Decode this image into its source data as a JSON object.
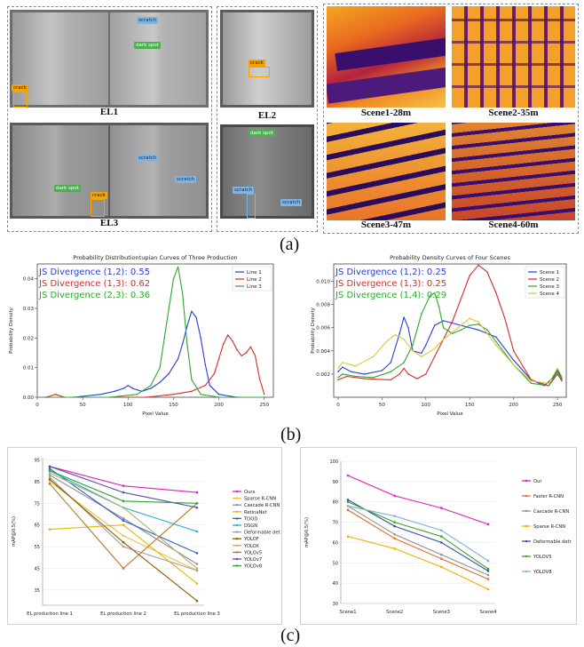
{
  "panel_a": {
    "letter": "(a)",
    "el": [
      {
        "caption": "EL1",
        "tags": [
          "scratch",
          "dark spot",
          "crack"
        ]
      },
      {
        "caption": "EL2",
        "tags": [
          "crack"
        ]
      },
      {
        "caption": "EL3",
        "tags": [
          "scratch",
          "scratch",
          "dark spot",
          "crack"
        ]
      },
      {
        "caption": "",
        "tags": [
          "dark spot",
          "scratch",
          "scratch"
        ]
      }
    ],
    "scenes": [
      "Scene1-28m",
      "Scene2-35m",
      "Scene3-47m",
      "Scene4-60m"
    ]
  },
  "panel_b": {
    "letter": "(b)"
  },
  "panel_c": {
    "letter": "(c)"
  },
  "colors": {
    "blue": "#2b3bd6",
    "red": "#d62b2b",
    "green": "#2ba82b",
    "gray": "#9a9a9a",
    "pink": "#e01fbf"
  },
  "chart_data": [
    {
      "type": "line",
      "title": "Probability Distributiontupian Curves of Three Production",
      "xlabel": "Pixel Value",
      "ylabel": "Probability Density",
      "xlim": [
        0,
        260
      ],
      "ylim": [
        0,
        0.045
      ],
      "xticks": [
        0,
        50,
        100,
        150,
        200,
        250
      ],
      "yticks": [
        0.0,
        0.01,
        0.02,
        0.03,
        0.04
      ],
      "ytick_labels": [
        "0.00",
        "0.01",
        "0.02",
        "0.03",
        "0.04"
      ],
      "legend": "top-right",
      "annotations": [
        {
          "text": "JS Divergence (1,2): 0.55",
          "color": "blue"
        },
        {
          "text": "JS Divergence (1,3): 0.62",
          "color": "red"
        },
        {
          "text": "JS Divergence (2,3): 0.36",
          "color": "green"
        }
      ],
      "series": [
        {
          "name": "Line 1",
          "color": "blue",
          "x": [
            10,
            40,
            70,
            85,
            95,
            100,
            105,
            115,
            125,
            135,
            145,
            155,
            160,
            165,
            170,
            175,
            180,
            185,
            190,
            200,
            220,
            250
          ],
          "y": [
            0,
            0,
            0.001,
            0.002,
            0.003,
            0.004,
            0.003,
            0.002,
            0.003,
            0.005,
            0.008,
            0.013,
            0.018,
            0.024,
            0.029,
            0.027,
            0.02,
            0.011,
            0.004,
            0.001,
            0,
            0
          ]
        },
        {
          "name": "Line 2",
          "color": "red",
          "x": [
            10,
            20,
            30,
            50,
            80,
            120,
            150,
            170,
            185,
            195,
            200,
            205,
            210,
            215,
            220,
            225,
            230,
            235,
            240,
            245,
            250
          ],
          "y": [
            0,
            0.001,
            0,
            0,
            0,
            0,
            0.001,
            0.002,
            0.004,
            0.008,
            0.013,
            0.018,
            0.021,
            0.019,
            0.016,
            0.014,
            0.015,
            0.017,
            0.014,
            0.006,
            0.001
          ]
        },
        {
          "name": "Line 3",
          "color": "green",
          "x": [
            10,
            80,
            110,
            125,
            135,
            140,
            145,
            150,
            155,
            160,
            165,
            170,
            180,
            200,
            250
          ],
          "y": [
            0,
            0,
            0.001,
            0.004,
            0.01,
            0.02,
            0.03,
            0.04,
            0.044,
            0.035,
            0.018,
            0.006,
            0.001,
            0,
            0
          ]
        }
      ]
    },
    {
      "type": "line",
      "title": "Probability Density Curves of Four Scenes",
      "xlabel": "Pixel Value",
      "ylabel": "Probability Density",
      "xlim": [
        -5,
        260
      ],
      "ylim": [
        0,
        0.0115
      ],
      "xticks": [
        0,
        50,
        100,
        150,
        200,
        250
      ],
      "yticks": [
        0.002,
        0.004,
        0.006,
        0.008,
        0.01
      ],
      "ytick_labels": [
        "0.002",
        "0.004",
        "0.006",
        "0.008",
        "0.010"
      ],
      "legend": "top-right",
      "annotations": [
        {
          "text": "JS Divergence (1,2): 0.25",
          "color": "blue"
        },
        {
          "text": "JS Divergence (1,3): 0.25",
          "color": "red"
        },
        {
          "text": "JS Divergence (1,4): 0.29",
          "color": "green"
        }
      ],
      "series": [
        {
          "name": "Scene 1",
          "color": "#2b3bd6",
          "x": [
            0,
            5,
            15,
            30,
            50,
            60,
            70,
            75,
            80,
            85,
            95,
            100,
            110,
            120,
            140,
            160,
            180,
            200,
            220,
            235,
            245,
            250,
            255
          ],
          "y": [
            0.0022,
            0.0026,
            0.0022,
            0.002,
            0.0023,
            0.003,
            0.0055,
            0.0069,
            0.006,
            0.004,
            0.0038,
            0.0045,
            0.0062,
            0.0066,
            0.0062,
            0.0058,
            0.0052,
            0.0032,
            0.0015,
            0.001,
            0.0017,
            0.0024,
            0.0016
          ]
        },
        {
          "name": "Scene 2",
          "color": "#d62b2b",
          "x": [
            0,
            10,
            30,
            60,
            70,
            75,
            80,
            90,
            100,
            110,
            120,
            130,
            140,
            150,
            160,
            170,
            180,
            190,
            200,
            220,
            240,
            250,
            255
          ],
          "y": [
            0.0015,
            0.0018,
            0.0016,
            0.0015,
            0.002,
            0.0025,
            0.002,
            0.0016,
            0.002,
            0.0035,
            0.005,
            0.0065,
            0.0085,
            0.0105,
            0.0114,
            0.0108,
            0.009,
            0.0068,
            0.004,
            0.0015,
            0.001,
            0.002,
            0.0014
          ]
        },
        {
          "name": "Scene 3",
          "color": "#2ba82b",
          "x": [
            0,
            5,
            20,
            40,
            60,
            75,
            85,
            95,
            105,
            110,
            115,
            120,
            130,
            140,
            150,
            160,
            170,
            180,
            200,
            220,
            240,
            250,
            255
          ],
          "y": [
            0.0017,
            0.002,
            0.0018,
            0.0017,
            0.0022,
            0.003,
            0.0045,
            0.0072,
            0.0088,
            0.009,
            0.0078,
            0.006,
            0.0055,
            0.0058,
            0.0062,
            0.0063,
            0.0058,
            0.0048,
            0.0028,
            0.0012,
            0.001,
            0.0022,
            0.0015
          ]
        },
        {
          "name": "Scene 4",
          "color": "#d6c82b",
          "x": [
            0,
            5,
            20,
            40,
            55,
            65,
            75,
            85,
            95,
            110,
            120,
            130,
            140,
            150,
            160,
            170,
            180,
            200,
            220,
            240,
            250,
            255
          ],
          "y": [
            0.0025,
            0.003,
            0.0027,
            0.0035,
            0.0048,
            0.0054,
            0.005,
            0.004,
            0.0035,
            0.0042,
            0.005,
            0.0056,
            0.0062,
            0.0068,
            0.0065,
            0.0055,
            0.0045,
            0.0028,
            0.0014,
            0.0012,
            0.0025,
            0.0018
          ]
        }
      ]
    },
    {
      "type": "line",
      "title": "",
      "xlabel": "",
      "ylabel": "mAP@0.5(%)",
      "categories": [
        "EL production line 1",
        "EL production line 2",
        "EL production line 3"
      ],
      "ylim": [
        28,
        96
      ],
      "yticks": [
        35,
        45,
        55,
        65,
        75,
        85,
        95
      ],
      "legend": "right",
      "series": [
        {
          "name": "Ours",
          "color": "#e01fbf",
          "values": [
            92,
            83,
            80
          ]
        },
        {
          "name": "Sparse R-CNN",
          "color": "#f0c040",
          "values": [
            85,
            60,
            44
          ]
        },
        {
          "name": "Cascade R-CNN",
          "color": "#909090",
          "values": [
            88,
            68,
            47
          ]
        },
        {
          "name": "RetinaNet",
          "color": "#e6b800",
          "values": [
            63,
            65,
            38
          ]
        },
        {
          "name": "TOOD",
          "color": "#3060c0",
          "values": [
            91,
            67,
            52
          ]
        },
        {
          "name": "DSGN",
          "color": "#20b0d0",
          "values": [
            90,
            73,
            62
          ]
        },
        {
          "name": "Deformable detr",
          "color": "#a0a0a0",
          "values": [
            87,
            55,
            44
          ]
        },
        {
          "name": "YOLOF",
          "color": "#8b5a00",
          "values": [
            86,
            57,
            30
          ]
        },
        {
          "name": "YOLOX",
          "color": "#b0b070",
          "values": [
            89,
            73,
            45
          ]
        },
        {
          "name": "YOLOv5",
          "color": "#b87820",
          "values": [
            84,
            45,
            75
          ]
        },
        {
          "name": "YOLOv7",
          "color": "#6050a0",
          "values": [
            92,
            80,
            73
          ]
        },
        {
          "name": "YOLOv8",
          "color": "#30a030",
          "values": [
            90,
            76,
            75
          ]
        }
      ]
    },
    {
      "type": "line",
      "title": "",
      "xlabel": "",
      "ylabel": "mAP@0.5(%)",
      "categories": [
        "Scene1",
        "Scene2",
        "Scene3",
        "Scene4"
      ],
      "ylim": [
        30,
        100
      ],
      "yticks": [
        30,
        40,
        50,
        60,
        70,
        80,
        90,
        100
      ],
      "legend": "right",
      "series": [
        {
          "name": "Our",
          "color": "#e01fbf",
          "values": [
            93,
            83,
            77,
            69
          ]
        },
        {
          "name": "Faster R-CNN",
          "color": "#e07030",
          "values": [
            76,
            62,
            52,
            42
          ]
        },
        {
          "name": "Cascade R-CNN",
          "color": "#909090",
          "values": [
            78,
            64,
            54,
            44
          ]
        },
        {
          "name": "Sparse R-CNN",
          "color": "#f0b000",
          "values": [
            63,
            57,
            48,
            37
          ]
        },
        {
          "name": "Deformable detr",
          "color": "#3050b0",
          "values": [
            81,
            68,
            60,
            46
          ]
        },
        {
          "name": "YOLOV5",
          "color": "#40a020",
          "values": [
            80,
            70,
            63,
            47
          ]
        },
        {
          "name": "YOLOV8",
          "color": "#80b0e0",
          "values": [
            78,
            73,
            66,
            51
          ]
        }
      ]
    }
  ]
}
